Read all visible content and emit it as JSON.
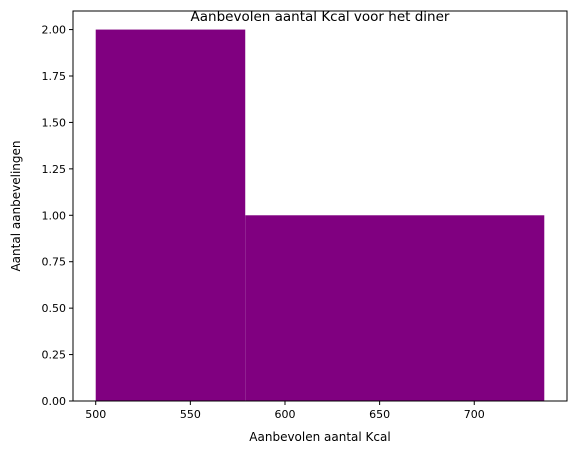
{
  "chart_data": {
    "type": "bar",
    "title": "Aanbevolen aantal Kcal voor het diner",
    "xlabel": "Aanbevolen aantal Kcal",
    "ylabel": "Aantal aanbevelingen",
    "bins": [
      {
        "start": 500,
        "end": 579,
        "count": 2
      },
      {
        "start": 579,
        "end": 737,
        "count": 1
      }
    ],
    "xlim": [
      488,
      749
    ],
    "ylim": [
      0,
      2.1
    ],
    "xticks": [
      500,
      550,
      600,
      650,
      700
    ],
    "xtick_labels": [
      "500",
      "550",
      "600",
      "650",
      "700"
    ],
    "yticks": [
      0,
      0.25,
      0.5,
      0.75,
      1,
      1.25,
      1.5,
      1.75,
      2
    ],
    "ytick_labels": [
      "0.00",
      "0.25",
      "0.50",
      "0.75",
      "1.00",
      "1.25",
      "1.50",
      "1.75",
      "2.00"
    ],
    "bar_color": "#800080",
    "grid": false,
    "legend": "none"
  }
}
